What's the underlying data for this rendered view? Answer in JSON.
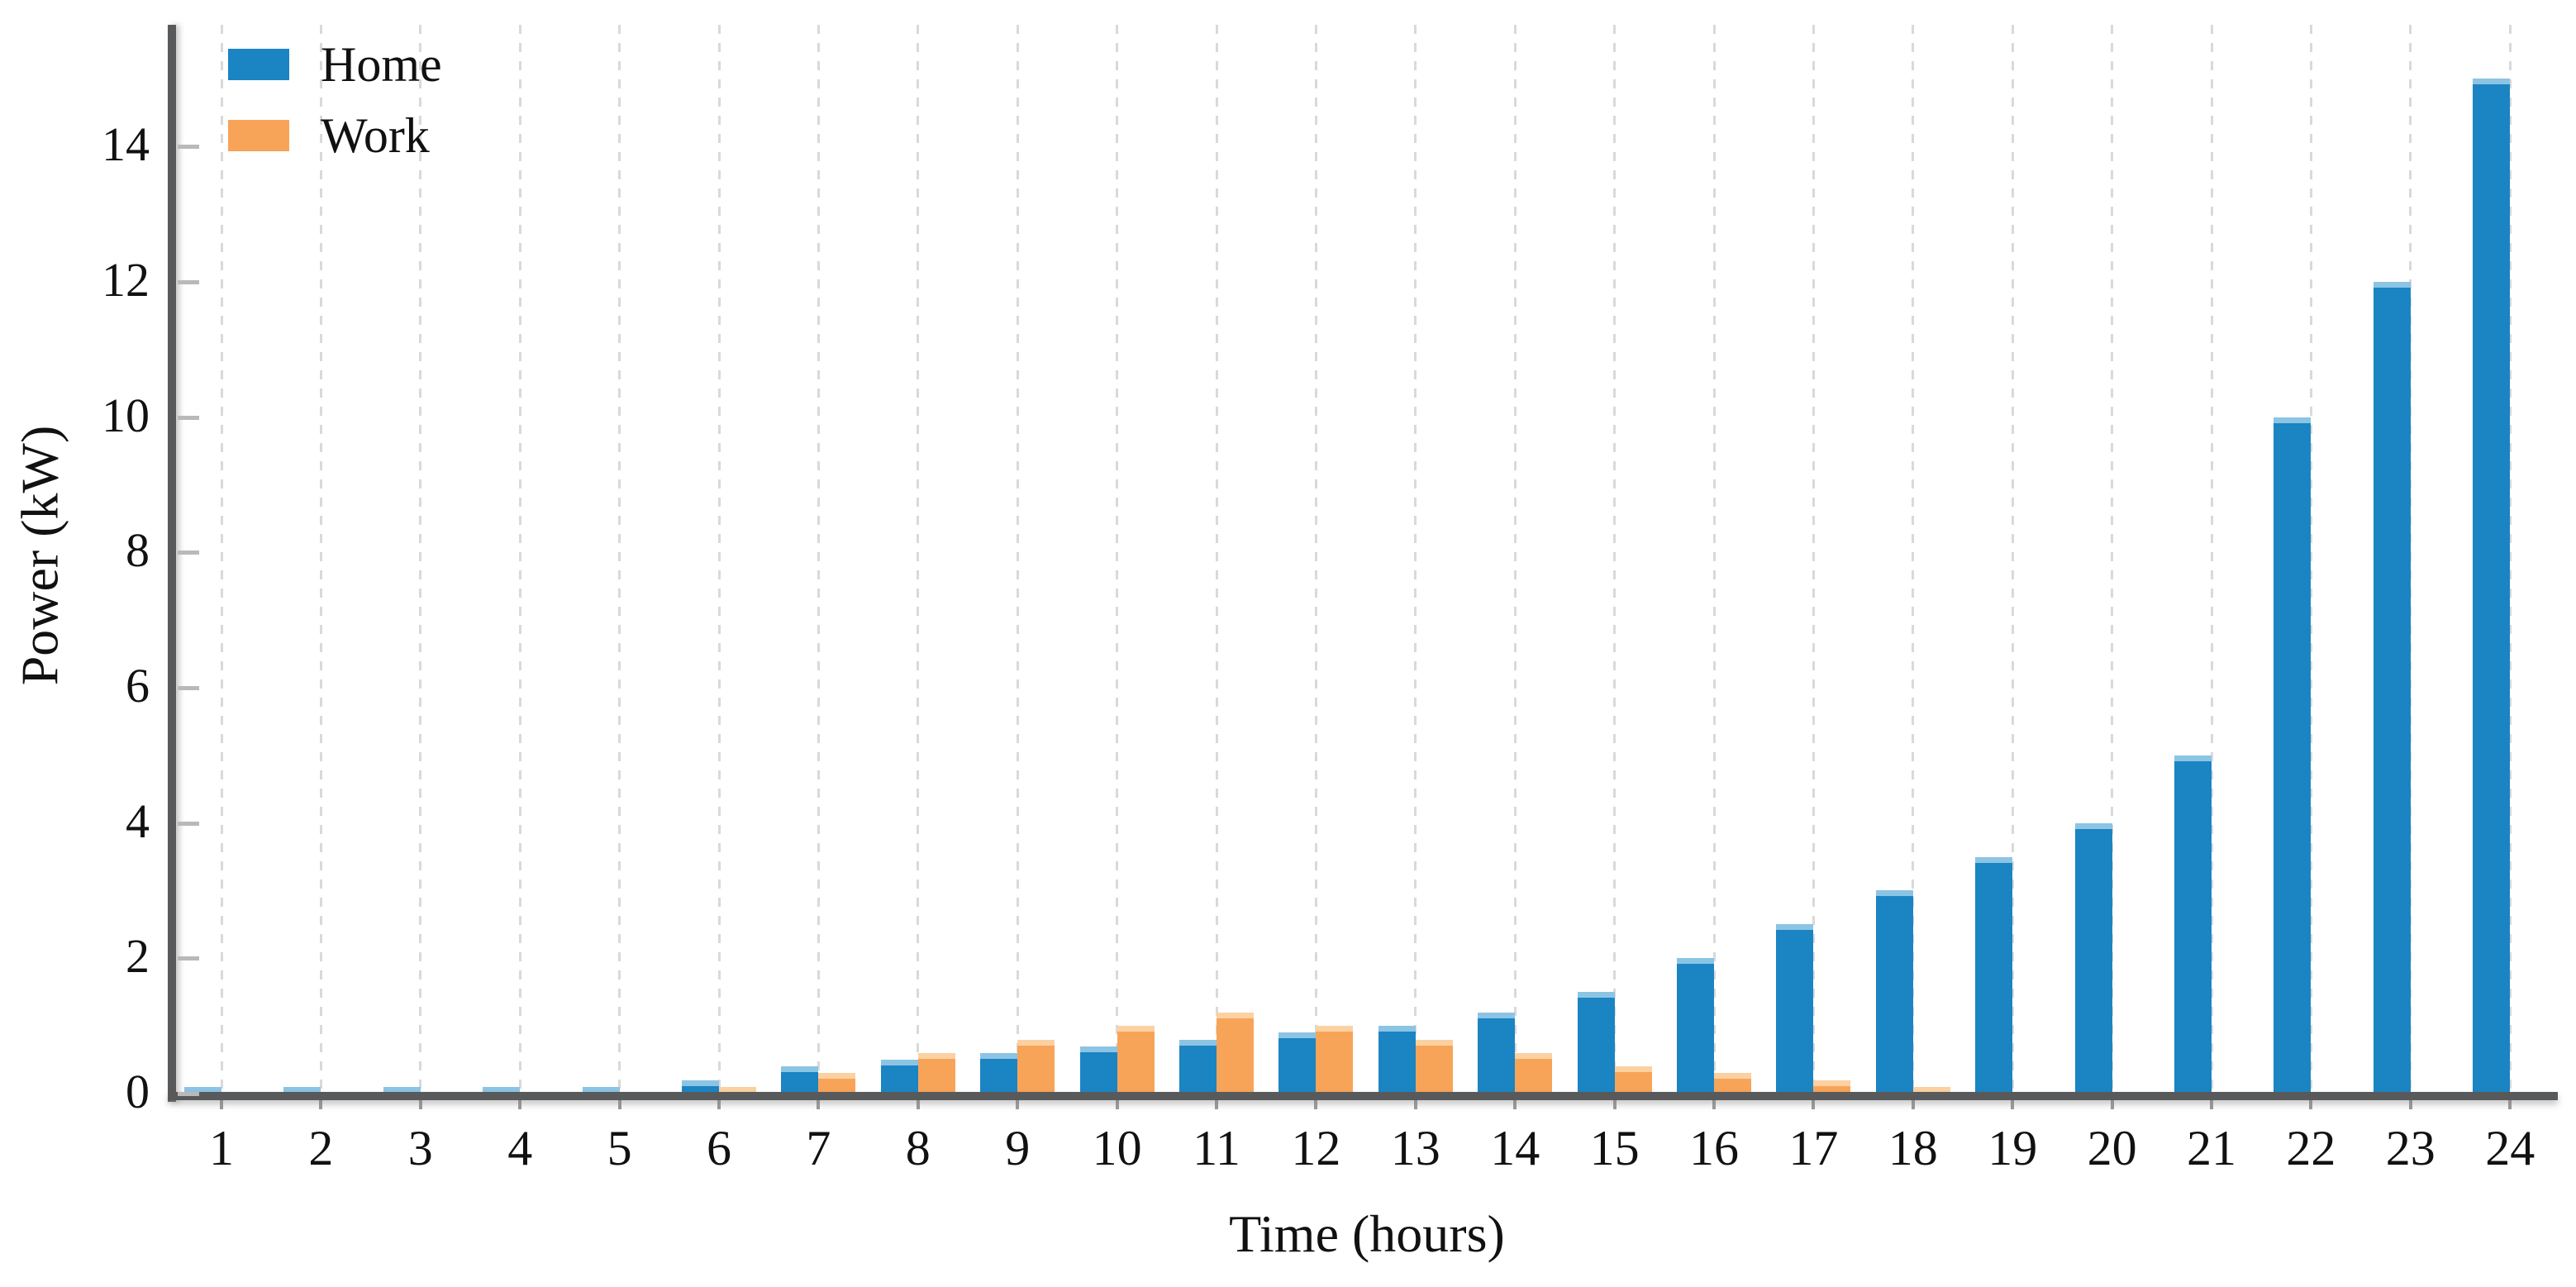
{
  "chart_data": {
    "type": "bar",
    "title": "",
    "xlabel": "Time (hours)",
    "ylabel": "Power (kW)",
    "categories": [
      1,
      2,
      3,
      4,
      5,
      6,
      7,
      8,
      9,
      10,
      11,
      12,
      13,
      14,
      15,
      16,
      17,
      18,
      19,
      20,
      21,
      22,
      23,
      24
    ],
    "series": [
      {
        "name": "Home",
        "values": [
          0.1,
          0.1,
          0.1,
          0.1,
          0.1,
          0.2,
          0.4,
          0.5,
          0.6,
          0.7,
          0.8,
          0.9,
          1.0,
          1.2,
          1.5,
          2.0,
          2.5,
          3.0,
          3.5,
          4.0,
          5.0,
          10.0,
          12.0,
          15.0
        ]
      },
      {
        "name": "Work",
        "values": [
          0,
          0,
          0,
          0,
          0,
          0.1,
          0.3,
          0.6,
          0.8,
          1.0,
          1.2,
          1.0,
          0.8,
          0.6,
          0.4,
          0.3,
          0.2,
          0.1,
          0,
          0,
          0,
          0,
          0,
          0
        ]
      }
    ],
    "colors": {
      "Home": "#1b84c2",
      "Work": "#f7a459"
    },
    "cap_colors": {
      "Home": "#8cc4e4",
      "Work": "#fbd1a2"
    },
    "ylim": [
      0,
      15.8
    ],
    "yticks": [
      0,
      2,
      4,
      6,
      8,
      10,
      12,
      14
    ],
    "grid": "vertical-dashed",
    "legend_position": "top-left",
    "axis_color": "#58595b",
    "gridline_color": "#d9d9d9"
  }
}
